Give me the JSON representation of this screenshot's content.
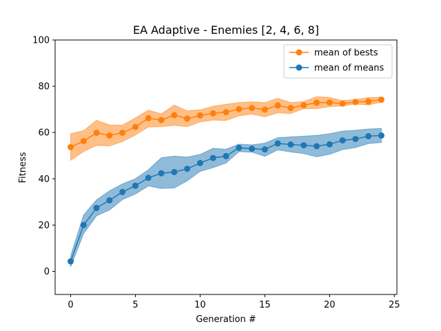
{
  "chart_data": {
    "type": "line",
    "title": "EA Adaptive - Enemies [2, 4, 6, 8]",
    "xlabel": "Generation #",
    "ylabel": "Fitness",
    "xlim": [
      -1.2,
      25.2
    ],
    "ylim": [
      -10,
      100
    ],
    "xticks": [
      0,
      5,
      10,
      15,
      20,
      25
    ],
    "yticks": [
      0,
      20,
      40,
      60,
      80,
      100
    ],
    "grid": false,
    "legend_position": "top-right",
    "x": [
      0,
      1,
      2,
      3,
      4,
      5,
      6,
      7,
      8,
      9,
      10,
      11,
      12,
      13,
      14,
      15,
      16,
      17,
      18,
      19,
      20,
      21,
      22,
      23,
      24
    ],
    "series": [
      {
        "name": "mean of bests",
        "color": "#ff7f0e",
        "values": [
          53.7,
          56.3,
          59.9,
          58.7,
          59.9,
          62.4,
          66.2,
          65.4,
          67.5,
          66.0,
          67.4,
          68.3,
          68.8,
          70.1,
          70.6,
          69.9,
          71.7,
          70.6,
          71.8,
          72.9,
          73.0,
          72.5,
          73.2,
          73.4,
          74.2
        ],
        "upper": [
          59.5,
          60.8,
          65.3,
          63.3,
          63.2,
          66.3,
          69.7,
          68.1,
          71.9,
          69.4,
          69.8,
          71.4,
          72.2,
          73.0,
          73.3,
          72.9,
          74.8,
          73.0,
          73.4,
          75.5,
          75.2,
          73.8,
          74.3,
          75.1,
          75.3
        ],
        "lower": [
          48.0,
          51.8,
          54.4,
          54.2,
          56.1,
          58.9,
          62.4,
          62.5,
          63.1,
          62.5,
          64.6,
          65.4,
          65.2,
          67.2,
          67.9,
          66.8,
          68.5,
          68.2,
          70.3,
          70.3,
          71.2,
          71.5,
          72.3,
          71.9,
          73.1
        ]
      },
      {
        "name": "mean of means",
        "color": "#1f77b4",
        "values": [
          4.3,
          20.0,
          27.4,
          30.7,
          34.3,
          37.0,
          40.4,
          42.4,
          42.9,
          44.3,
          46.8,
          49.0,
          49.8,
          53.4,
          53.0,
          52.7,
          55.3,
          54.8,
          54.5,
          54.1,
          54.9,
          56.6,
          57.2,
          58.4,
          58.7
        ],
        "upper": [
          6.7,
          24.4,
          30.9,
          34.8,
          37.8,
          40.0,
          43.9,
          49.1,
          49.8,
          49.4,
          50.5,
          53.2,
          52.8,
          55.0,
          54.7,
          55.4,
          57.8,
          58.1,
          58.4,
          58.8,
          59.5,
          60.6,
          61.0,
          61.5,
          61.8
        ],
        "lower": [
          1.9,
          16.3,
          24.0,
          26.5,
          31.0,
          33.4,
          36.9,
          35.8,
          36.0,
          39.1,
          43.2,
          44.8,
          46.8,
          51.7,
          51.5,
          49.7,
          52.5,
          51.6,
          50.9,
          49.5,
          50.6,
          52.6,
          53.5,
          55.2,
          55.7
        ]
      }
    ]
  }
}
